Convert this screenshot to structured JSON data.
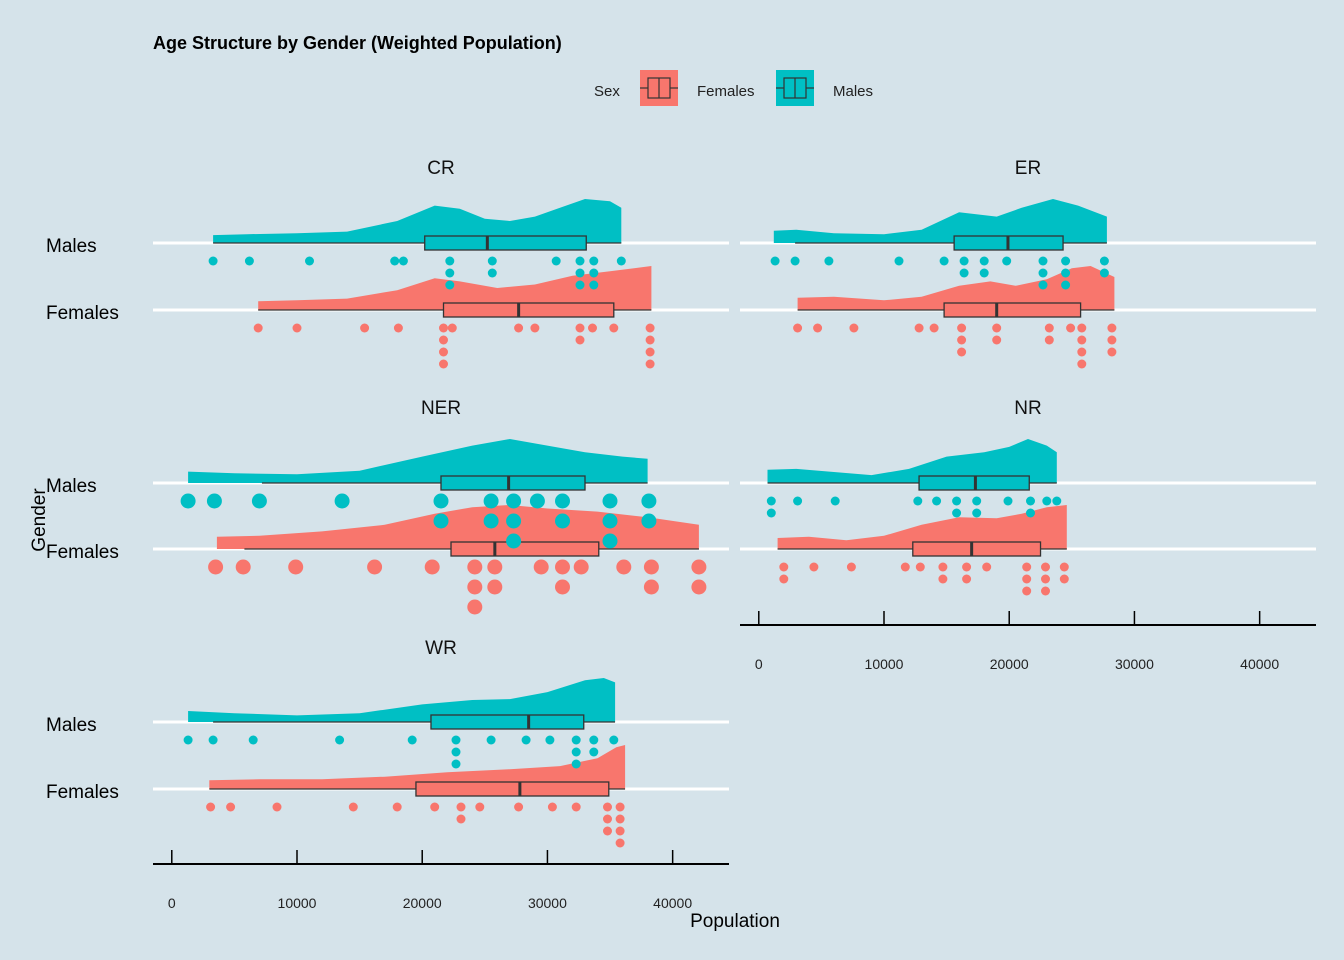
{
  "chart_data": {
    "type": "raincloud",
    "title": "Age Structure by Gender (Weighted Population)",
    "xlabel": "Population",
    "ylabel": "Gender",
    "xlim": [
      -1500,
      44500
    ],
    "xticks": [
      0,
      10000,
      20000,
      30000,
      40000
    ],
    "xtick_labels": [
      "0",
      "10000",
      "20000",
      "30000",
      "40000"
    ],
    "legend": {
      "title": "Sex",
      "position": "top",
      "entries": [
        {
          "label": "Females",
          "color": "#f8766d"
        },
        {
          "label": "Males",
          "color": "#00bfc4"
        }
      ]
    },
    "categories": [
      "Males",
      "Females"
    ],
    "colors": {
      "Females": "#f8766d",
      "Males": "#00bfc4",
      "background": "#d5e3ea"
    },
    "panels": [
      {
        "label": "CR",
        "series": [
          {
            "name": "Males",
            "box": {
              "min": 3300,
              "q1": 20200,
              "median": 25200,
              "q3": 33100,
              "max": 35900
            },
            "density": [
              [
                3300,
                0.18
              ],
              [
                6000,
                0.2
              ],
              [
                10000,
                0.22
              ],
              [
                14000,
                0.26
              ],
              [
                18000,
                0.5
              ],
              [
                21000,
                0.85
              ],
              [
                23000,
                0.78
              ],
              [
                25000,
                0.55
              ],
              [
                27000,
                0.5
              ],
              [
                29000,
                0.6
              ],
              [
                31000,
                0.8
              ],
              [
                33000,
                1.0
              ],
              [
                35000,
                0.95
              ],
              [
                35900,
                0.8
              ]
            ],
            "points": [
              3300,
              6200,
              11000,
              17800,
              18500,
              22200,
              22200,
              22200,
              25600,
              25600,
              30700,
              32600,
              32600,
              32600,
              33700,
              33700,
              33700,
              35900
            ]
          },
          {
            "name": "Females",
            "box": {
              "min": 6900,
              "q1": 21700,
              "median": 27700,
              "q3": 35300,
              "max": 38300
            },
            "density": [
              [
                6900,
                0.2
              ],
              [
                10000,
                0.22
              ],
              [
                14000,
                0.26
              ],
              [
                18000,
                0.45
              ],
              [
                21000,
                0.72
              ],
              [
                23000,
                0.65
              ],
              [
                26000,
                0.5
              ],
              [
                29000,
                0.58
              ],
              [
                32000,
                0.78
              ],
              [
                35000,
                0.88
              ],
              [
                38300,
                1.0
              ]
            ],
            "points": [
              6900,
              10000,
              15400,
              18100,
              21700,
              21700,
              21700,
              21700,
              22400,
              27700,
              29000,
              32600,
              32600,
              33600,
              35300,
              38200,
              38200,
              38200,
              38200
            ]
          }
        ]
      },
      {
        "label": "ER",
        "series": [
          {
            "name": "Males",
            "box": {
              "min": 2900,
              "q1": 15600,
              "median": 19900,
              "q3": 24300,
              "max": 27800
            },
            "density": [
              [
                1200,
                0.28
              ],
              [
                3000,
                0.3
              ],
              [
                6000,
                0.22
              ],
              [
                10000,
                0.2
              ],
              [
                13000,
                0.3
              ],
              [
                16000,
                0.7
              ],
              [
                19000,
                0.6
              ],
              [
                21000,
                0.8
              ],
              [
                23500,
                1.0
              ],
              [
                25500,
                0.85
              ],
              [
                27800,
                0.6
              ]
            ],
            "points": [
              1300,
              2900,
              5600,
              11200,
              14800,
              16400,
              16400,
              18000,
              18000,
              19800,
              22700,
              22700,
              22700,
              24500,
              24500,
              24500,
              27600,
              27600
            ]
          },
          {
            "name": "Females",
            "box": {
              "min": 3100,
              "q1": 14800,
              "median": 19000,
              "q3": 25700,
              "max": 28400
            },
            "density": [
              [
                3100,
                0.28
              ],
              [
                6000,
                0.3
              ],
              [
                10000,
                0.22
              ],
              [
                13000,
                0.3
              ],
              [
                16000,
                0.55
              ],
              [
                18500,
                0.65
              ],
              [
                20500,
                0.55
              ],
              [
                23000,
                0.7
              ],
              [
                25000,
                0.95
              ],
              [
                26500,
                1.0
              ],
              [
                28400,
                0.75
              ]
            ],
            "points": [
              3100,
              4700,
              7600,
              12800,
              14000,
              16200,
              16200,
              16200,
              19000,
              19000,
              23200,
              23200,
              24900,
              25800,
              25800,
              25800,
              25800,
              28200,
              28200,
              28200
            ]
          }
        ]
      },
      {
        "label": "NER",
        "series": [
          {
            "name": "Males",
            "box": {
              "min": 7200,
              "q1": 21500,
              "median": 26900,
              "q3": 33000,
              "max": 38000
            },
            "density": [
              [
                1300,
                0.26
              ],
              [
                5000,
                0.22
              ],
              [
                10000,
                0.2
              ],
              [
                15000,
                0.28
              ],
              [
                20000,
                0.6
              ],
              [
                24000,
                0.85
              ],
              [
                27000,
                1.0
              ],
              [
                30000,
                0.85
              ],
              [
                33000,
                0.7
              ],
              [
                36000,
                0.6
              ],
              [
                38000,
                0.55
              ]
            ],
            "points": [
              1300,
              3400,
              7000,
              13600,
              21500,
              21500,
              25500,
              25500,
              27300,
              27300,
              27300,
              29200,
              31200,
              31200,
              35000,
              35000,
              35000,
              38100,
              38100
            ]
          },
          {
            "name": "Females",
            "box": {
              "min": 5800,
              "q1": 22300,
              "median": 25800,
              "q3": 34100,
              "max": 42100
            },
            "density": [
              [
                3600,
                0.28
              ],
              [
                7000,
                0.3
              ],
              [
                12000,
                0.4
              ],
              [
                17000,
                0.55
              ],
              [
                21000,
                0.8
              ],
              [
                24000,
                0.95
              ],
              [
                27000,
                1.0
              ],
              [
                30000,
                0.92
              ],
              [
                34000,
                0.85
              ],
              [
                38000,
                0.72
              ],
              [
                42100,
                0.55
              ]
            ],
            "points": [
              3500,
              5700,
              9900,
              16200,
              20800,
              24200,
              24200,
              24200,
              25800,
              25800,
              29500,
              31200,
              31200,
              32700,
              36100,
              38300,
              38300,
              42100,
              42100
            ]
          }
        ]
      },
      {
        "label": "NR",
        "series": [
          {
            "name": "Males",
            "box": {
              "min": 700,
              "q1": 12800,
              "median": 17300,
              "q3": 21600,
              "max": 23800
            },
            "density": [
              [
                700,
                0.3
              ],
              [
                3000,
                0.32
              ],
              [
                6000,
                0.25
              ],
              [
                9000,
                0.18
              ],
              [
                12000,
                0.32
              ],
              [
                15000,
                0.6
              ],
              [
                18000,
                0.7
              ],
              [
                20000,
                0.82
              ],
              [
                21500,
                1.0
              ],
              [
                23000,
                0.85
              ],
              [
                23800,
                0.7
              ]
            ],
            "points": [
              1000,
              1000,
              3100,
              6100,
              12700,
              14200,
              15800,
              15800,
              17400,
              17400,
              19900,
              21700,
              21700,
              23000,
              23800
            ]
          },
          {
            "name": "Females",
            "box": {
              "min": 1500,
              "q1": 12300,
              "median": 17000,
              "q3": 22500,
              "max": 24600
            },
            "density": [
              [
                1500,
                0.25
              ],
              [
                4000,
                0.28
              ],
              [
                7000,
                0.2
              ],
              [
                10000,
                0.3
              ],
              [
                13000,
                0.55
              ],
              [
                16000,
                0.72
              ],
              [
                19000,
                0.7
              ],
              [
                21000,
                0.8
              ],
              [
                23000,
                0.95
              ],
              [
                24600,
                1.0
              ]
            ],
            "points": [
              2000,
              2000,
              4400,
              7400,
              11700,
              12900,
              14700,
              14700,
              16600,
              16600,
              18200,
              21400,
              21400,
              21400,
              22900,
              22900,
              22900,
              24400,
              24400
            ]
          }
        ]
      },
      {
        "label": "WR",
        "series": [
          {
            "name": "Males",
            "box": {
              "min": 3300,
              "q1": 20700,
              "median": 28500,
              "q3": 32900,
              "max": 35400
            },
            "density": [
              [
                1300,
                0.25
              ],
              [
                5000,
                0.2
              ],
              [
                10000,
                0.15
              ],
              [
                15000,
                0.2
              ],
              [
                20000,
                0.4
              ],
              [
                24000,
                0.5
              ],
              [
                27000,
                0.52
              ],
              [
                30000,
                0.68
              ],
              [
                33000,
                0.95
              ],
              [
                34500,
                1.0
              ],
              [
                35400,
                0.9
              ]
            ],
            "points": [
              1300,
              3300,
              6500,
              13400,
              19200,
              22700,
              22700,
              22700,
              25500,
              28300,
              30200,
              32300,
              32300,
              32300,
              33700,
              33700,
              35300
            ]
          },
          {
            "name": "Females",
            "box": {
              "min": 3000,
              "q1": 19500,
              "median": 27800,
              "q3": 34900,
              "max": 36200
            },
            "density": [
              [
                3000,
                0.2
              ],
              [
                7000,
                0.22
              ],
              [
                12000,
                0.22
              ],
              [
                17000,
                0.28
              ],
              [
                22000,
                0.38
              ],
              [
                27000,
                0.45
              ],
              [
                31000,
                0.52
              ],
              [
                34000,
                0.7
              ],
              [
                35500,
                0.95
              ],
              [
                36200,
                1.0
              ]
            ],
            "points": [
              3100,
              4700,
              8400,
              14500,
              18000,
              21000,
              23100,
              23100,
              24600,
              27700,
              30400,
              32300,
              34800,
              34800,
              34800,
              35800,
              35800,
              35800,
              35800
            ]
          }
        ]
      }
    ]
  }
}
